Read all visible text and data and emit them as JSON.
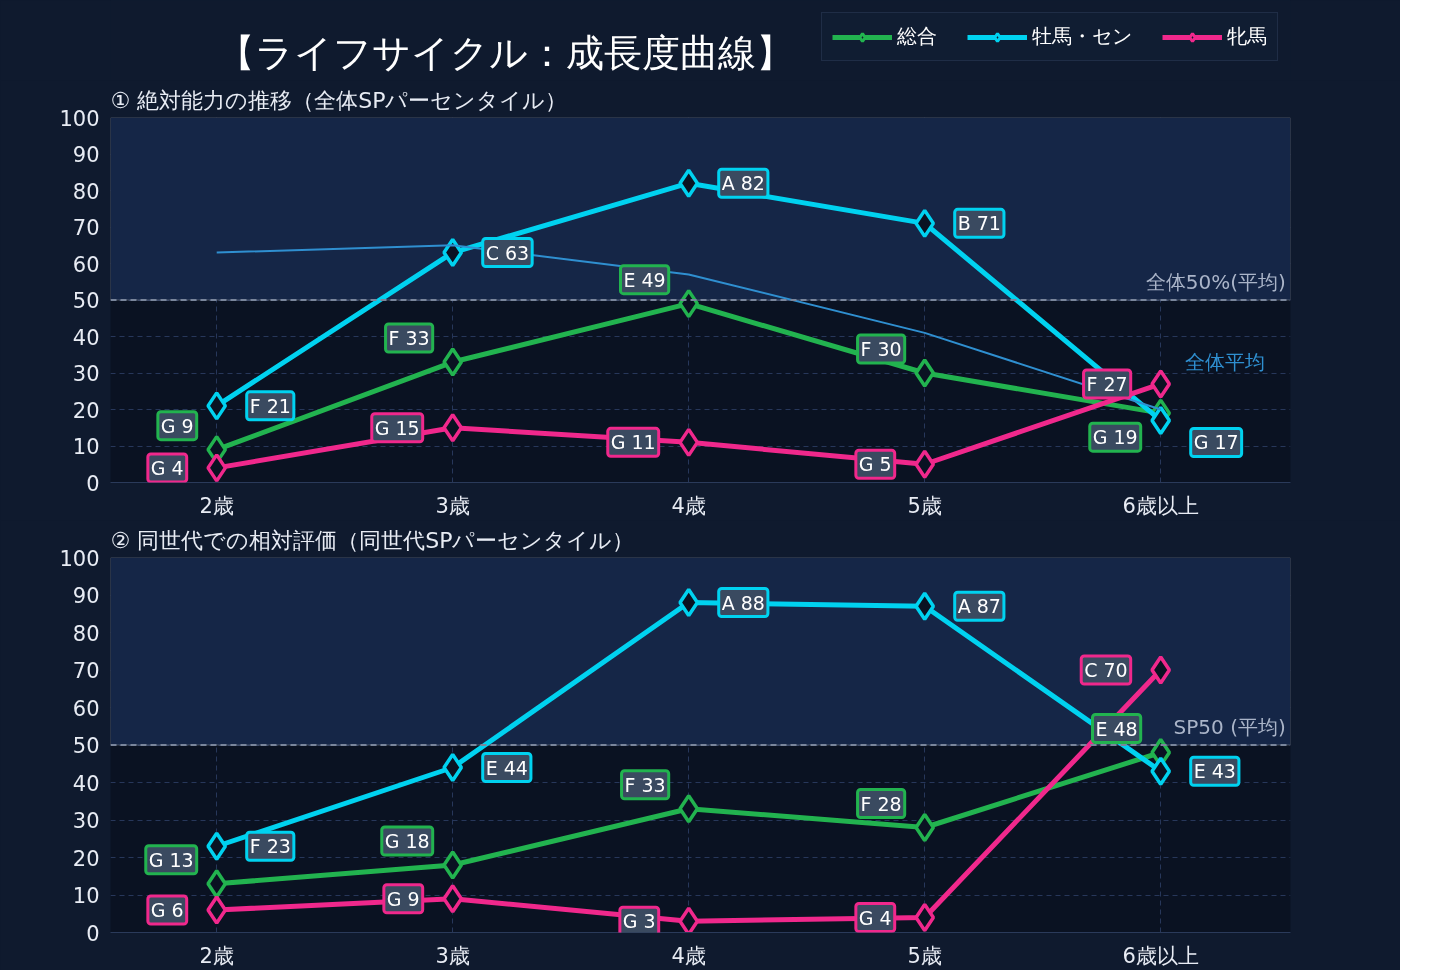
{
  "chart_data": [
    {
      "type": "line",
      "title": "【ライフサイクル：成長度曲線】",
      "subtitle": "① 絶対能力の推移（全体SPパーセンタイル）",
      "categories": [
        "2歳",
        "3歳",
        "4歳",
        "5歳",
        "6歳以上"
      ],
      "ylim": [
        0,
        100
      ],
      "yticks": [
        0,
        10,
        20,
        30,
        40,
        50,
        60,
        70,
        80,
        90,
        100
      ],
      "grid": true,
      "legend": "top right",
      "marker": "diamond",
      "line_style": "solid",
      "series": [
        {
          "name": "総合",
          "color": "#22b34f",
          "values": [
            9,
            33,
            49,
            30,
            19
          ],
          "value_labels": [
            "G 9",
            "F 33",
            "E 49",
            "F 30",
            "G 19"
          ]
        },
        {
          "name": "牡馬・セン",
          "color": "#00d2f0",
          "values": [
            21,
            63,
            82,
            71,
            17
          ],
          "value_labels": [
            "F 21",
            "C 63",
            "A 82",
            "B 71",
            "G 17"
          ]
        },
        {
          "name": "牝馬",
          "color": "#f0288c",
          "values": [
            4,
            15,
            11,
            5,
            27
          ],
          "value_labels": [
            "G 4",
            "G 15",
            "G 11",
            "G 5",
            "F 27"
          ]
        },
        {
          "name": "全体平均",
          "color": "#2f8fd0",
          "values": [
            63,
            65,
            57,
            41,
            20
          ],
          "marker": "none"
        }
      ],
      "ref_lines": [
        {
          "axis": "y",
          "value": 50,
          "label": "全体50%(平均)",
          "color": "#7a869c",
          "line_style": "dashed"
        }
      ],
      "bands": [
        {
          "axis": "y",
          "from": 50,
          "to": 100,
          "color": "#152647"
        }
      ]
    },
    {
      "type": "line",
      "title": "② 同世代での相対評価（同世代SPパーセンタイル）",
      "categories": [
        "2歳",
        "3歳",
        "4歳",
        "5歳",
        "6歳以上"
      ],
      "ylim": [
        0,
        100
      ],
      "yticks": [
        0,
        10,
        20,
        30,
        40,
        50,
        60,
        70,
        80,
        90,
        100
      ],
      "grid": true,
      "marker": "diamond",
      "line_style": "solid",
      "series": [
        {
          "color": "#22b34f",
          "values": [
            13,
            18,
            33,
            28,
            48
          ],
          "value_labels": [
            "G 13",
            "G 18",
            "F 33",
            "F 28",
            "E 48"
          ]
        },
        {
          "color": "#00d2f0",
          "values": [
            23,
            44,
            88,
            87,
            43
          ],
          "value_labels": [
            "F 23",
            "E 44",
            "A 88",
            "A 87",
            "E 43"
          ]
        },
        {
          "color": "#f0288c",
          "values": [
            6,
            9,
            3,
            4,
            70
          ],
          "value_labels": [
            "G 6",
            "G 9",
            "G 3",
            "G 4",
            "C 70"
          ]
        }
      ],
      "ref_lines": [
        {
          "axis": "y",
          "value": 50,
          "label": "SP50 (平均)",
          "color": "#7a869c",
          "line_style": "dashed"
        }
      ],
      "bands": [
        {
          "axis": "y",
          "from": 50,
          "to": 100,
          "color": "#152647"
        }
      ]
    }
  ]
}
